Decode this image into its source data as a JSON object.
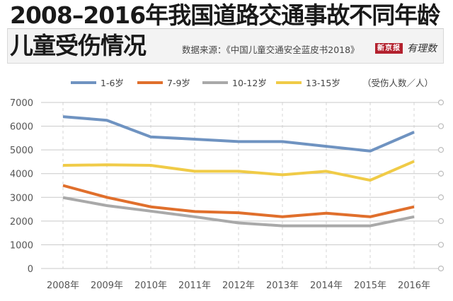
{
  "header": {
    "title_line1": "2008–2016年我国道路交通事故不同年龄",
    "title_line2": "儿童受伤情况",
    "source": "数据来源：《中国儿童交通安全蓝皮书2018》",
    "logo_brand": "新京报",
    "logo_column": "有理数"
  },
  "colors": {
    "1-6岁": "#6f93c1",
    "7-9岁": "#e06f2c",
    "10-12岁": "#a9a9a9",
    "13-15岁": "#f0cb47",
    "grid": "#c9c9c9",
    "vgrid": "#d4d4d4"
  },
  "chart_data": {
    "type": "line",
    "title": "2008–2016年我国道路交通事故不同年龄儿童受伤情况",
    "unit_label": "（受伤人数／人）",
    "xlabel": "",
    "ylabel": "受伤人数（人）",
    "categories": [
      "2008年",
      "2009年",
      "2010年",
      "2011年",
      "2012年",
      "2013年",
      "2014年",
      "2015年",
      "2016年"
    ],
    "ylim": [
      0,
      7000
    ],
    "yticks": [
      0,
      1000,
      2000,
      3000,
      4000,
      5000,
      6000,
      7000
    ],
    "grid": true,
    "legend_position": "top",
    "series": [
      {
        "name": "1-6岁",
        "values": [
          6400,
          6250,
          5550,
          5450,
          5350,
          5350,
          5150,
          4950,
          5750
        ]
      },
      {
        "name": "7-9岁",
        "values": [
          3500,
          3000,
          2600,
          2400,
          2350,
          2180,
          2330,
          2180,
          2600
        ]
      },
      {
        "name": "10-12岁",
        "values": [
          2990,
          2650,
          2420,
          2180,
          1920,
          1800,
          1800,
          1800,
          2180
        ]
      },
      {
        "name": "13-15岁",
        "values": [
          4350,
          4370,
          4350,
          4100,
          4100,
          3950,
          4100,
          3720,
          4520
        ]
      }
    ]
  }
}
